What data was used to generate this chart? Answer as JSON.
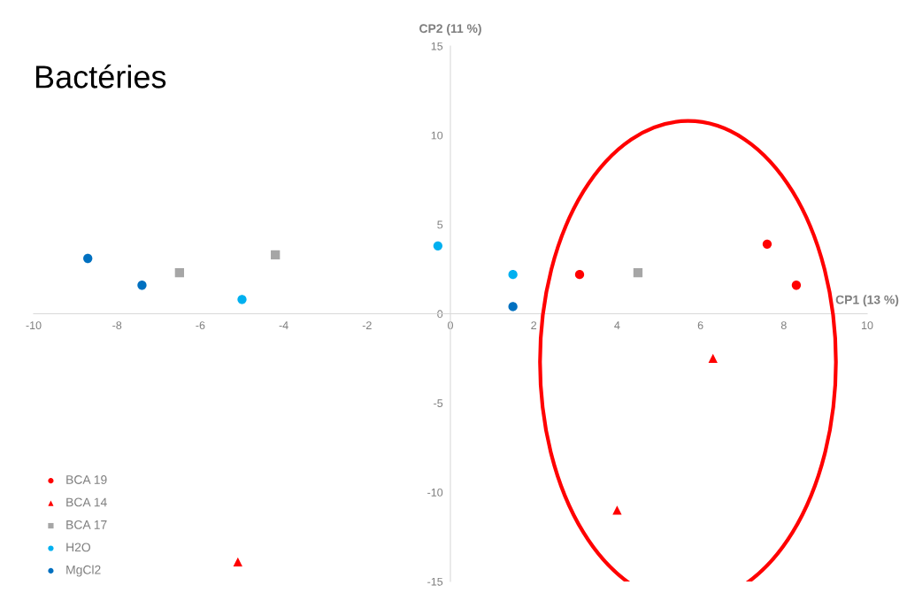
{
  "chart_data": {
    "type": "scatter",
    "title": "Bactéries",
    "xlabel": "CP1 (13 %)",
    "ylabel": "CP2 (11 %)",
    "xlim": [
      -10,
      10
    ],
    "ylim": [
      -15,
      15
    ],
    "xticks": [
      -10,
      -8,
      -6,
      -4,
      -2,
      0,
      2,
      4,
      6,
      8,
      10
    ],
    "yticks": [
      -15,
      -10,
      -5,
      0,
      5,
      10,
      15
    ],
    "grid": false,
    "legend": "bottom left",
    "series": [
      {
        "name": "BCA 19",
        "color": "#ff0000",
        "marker": "circle",
        "x": [
          3.1,
          7.6,
          8.3
        ],
        "values": [
          2.2,
          3.9,
          1.6
        ]
      },
      {
        "name": "BCA 14",
        "color": "#ff0000",
        "marker": "triangle",
        "x": [
          6.3,
          4.0,
          -5.1
        ],
        "values": [
          -2.5,
          -11.0,
          -13.9
        ]
      },
      {
        "name": "BCA 17",
        "color": "#a6a6a6",
        "marker": "square",
        "x": [
          -6.5,
          -4.2,
          4.5
        ],
        "values": [
          2.3,
          3.3,
          2.3
        ]
      },
      {
        "name": "H2O",
        "color": "#00b0f0",
        "marker": "circle",
        "x": [
          -0.3,
          1.5,
          -5.0
        ],
        "values": [
          3.8,
          2.2,
          0.8
        ]
      },
      {
        "name": "MgCl2",
        "color": "#0070c0",
        "marker": "circle",
        "x": [
          -8.7,
          -7.4,
          1.5
        ],
        "values": [
          3.1,
          1.6,
          0.4
        ]
      }
    ]
  }
}
